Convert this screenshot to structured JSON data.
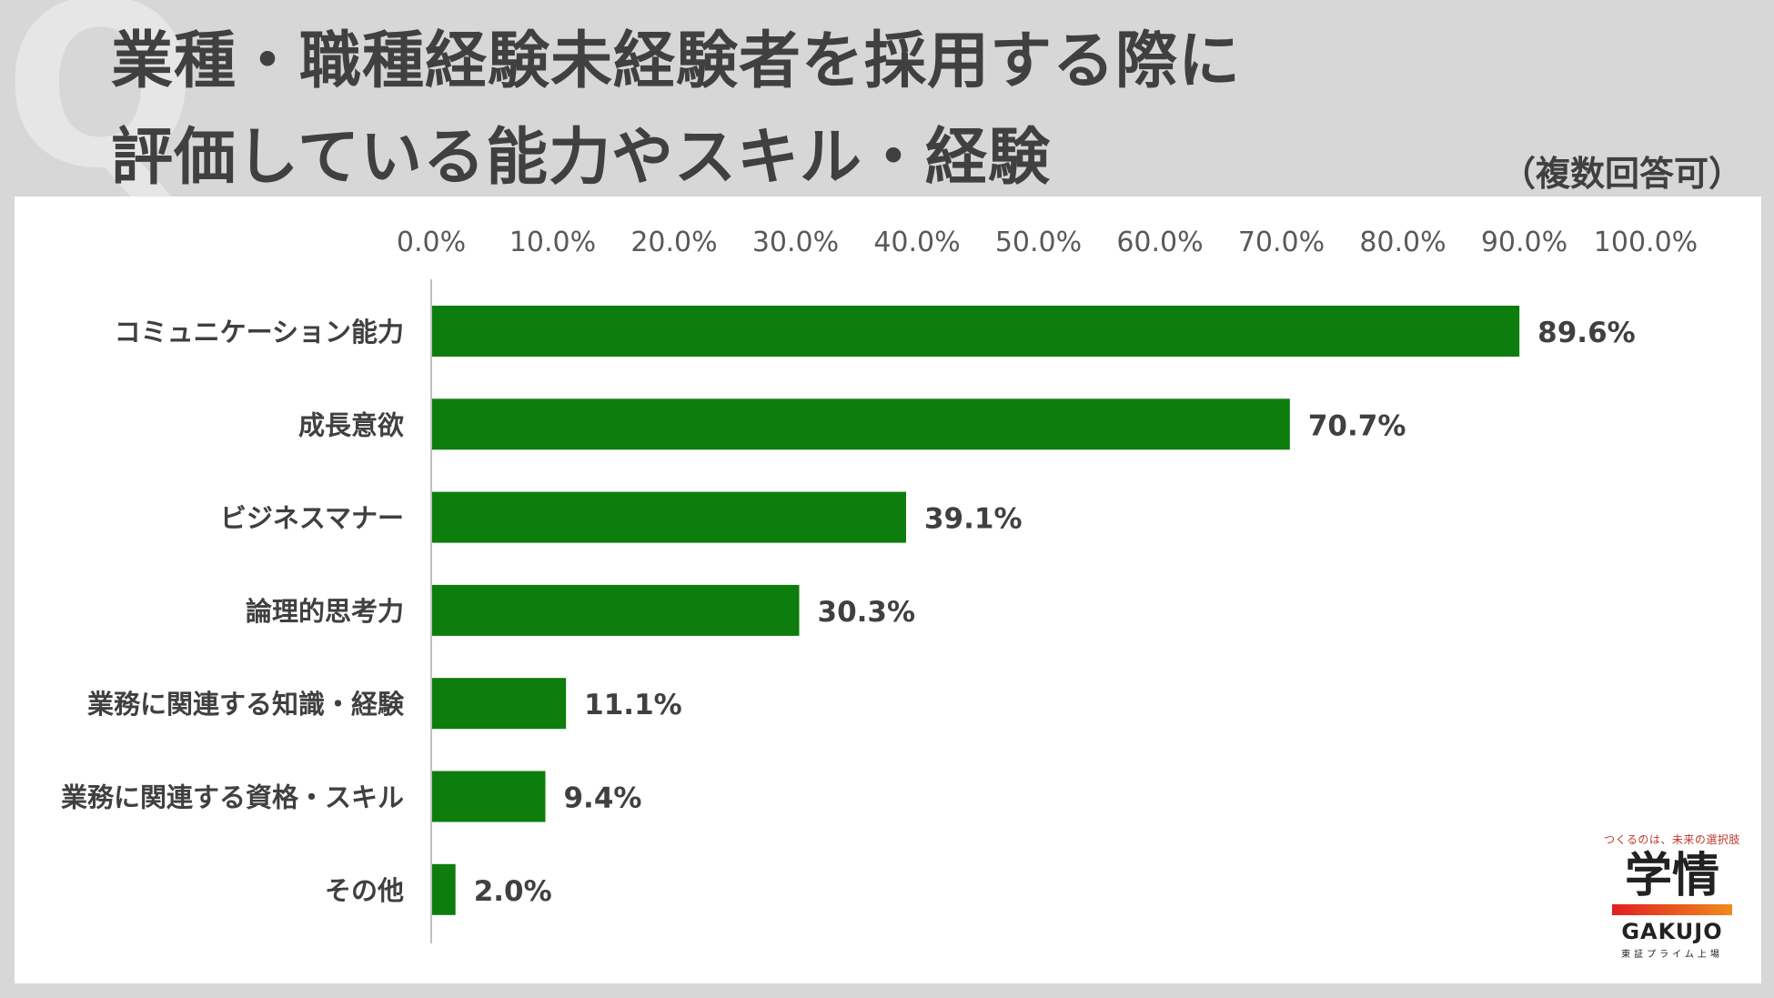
{
  "header": {
    "title_line1": "業種・職種経験未経験者を採用する際に",
    "title_line2": "評価している能力やスキル・経験",
    "note": "（複数回答可）"
  },
  "brand": {
    "tagline": "つくるのは、未来の選択肢",
    "logo": "学情",
    "name": "GAKUJO",
    "sub": "東証プライム上場"
  },
  "chart_data": {
    "type": "bar",
    "orientation": "horizontal",
    "categories": [
      "コミュニケーション能力",
      "成長意欲",
      "ビジネスマナー",
      "論理的思考力",
      "業務に関連する知識・経験",
      "業務に関連する資格・スキル",
      "その他"
    ],
    "values": [
      89.6,
      70.7,
      39.1,
      30.3,
      11.1,
      9.4,
      2.0
    ],
    "value_labels": [
      "89.6%",
      "70.7%",
      "39.1%",
      "30.3%",
      "11.1%",
      "9.4%",
      "2.0%"
    ],
    "x_ticks": [
      "0.0%",
      "10.0%",
      "20.0%",
      "30.0%",
      "40.0%",
      "50.0%",
      "60.0%",
      "70.0%",
      "80.0%",
      "90.0%",
      "100.0%"
    ],
    "xlim": [
      0,
      100
    ],
    "axis_position": "top",
    "grid": false,
    "bar_color": "#0d7d0d"
  }
}
